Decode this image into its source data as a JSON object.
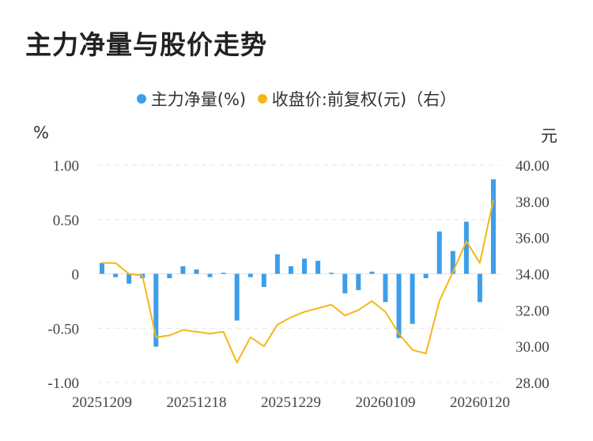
{
  "title": "主力净量与股价走势",
  "legend": {
    "left_series": "主力净量(%)",
    "right_series": "收盘价:前复权(元)（右）"
  },
  "units": {
    "left": "%",
    "right": "元"
  },
  "colors": {
    "bar": "#3d9ee9",
    "line": "#f5b619",
    "grid": "#e3e3e3"
  },
  "chart_data": {
    "type": "bar+line",
    "x_tick_labels": [
      "20251209",
      "20251218",
      "20251229",
      "20260109",
      "20260120"
    ],
    "y_left": {
      "ticks": [
        "1.00",
        "0.50",
        "0",
        "-0.50",
        "-1.00"
      ],
      "range": [
        -1.0,
        1.0
      ]
    },
    "y_right": {
      "ticks": [
        "40.00",
        "38.00",
        "36.00",
        "34.00",
        "32.00",
        "30.00",
        "28.00"
      ],
      "range": [
        28.0,
        40.0
      ]
    },
    "series": [
      {
        "name": "主力净量(%)",
        "type": "bar",
        "axis": "left",
        "values": [
          0.1,
          -0.03,
          -0.09,
          -0.04,
          -0.67,
          -0.04,
          0.07,
          0.04,
          -0.03,
          0.01,
          -0.43,
          -0.03,
          -0.12,
          0.18,
          0.07,
          0.14,
          0.12,
          0.0,
          -0.18,
          -0.15,
          0.02,
          -0.26,
          -0.59,
          -0.46,
          -0.04,
          0.39,
          0.21,
          0.48,
          -0.26,
          0.87
        ]
      },
      {
        "name": "收盘价:前复权(元)（右）",
        "type": "line",
        "axis": "right",
        "values": [
          34.6,
          34.6,
          34.0,
          33.9,
          30.5,
          30.6,
          30.9,
          30.8,
          30.7,
          30.8,
          29.1,
          30.5,
          30.0,
          31.2,
          31.6,
          31.9,
          32.1,
          32.3,
          31.7,
          32.0,
          32.5,
          31.9,
          30.7,
          29.8,
          29.6,
          32.5,
          34.1,
          35.8,
          34.6,
          38.1
        ]
      }
    ]
  }
}
